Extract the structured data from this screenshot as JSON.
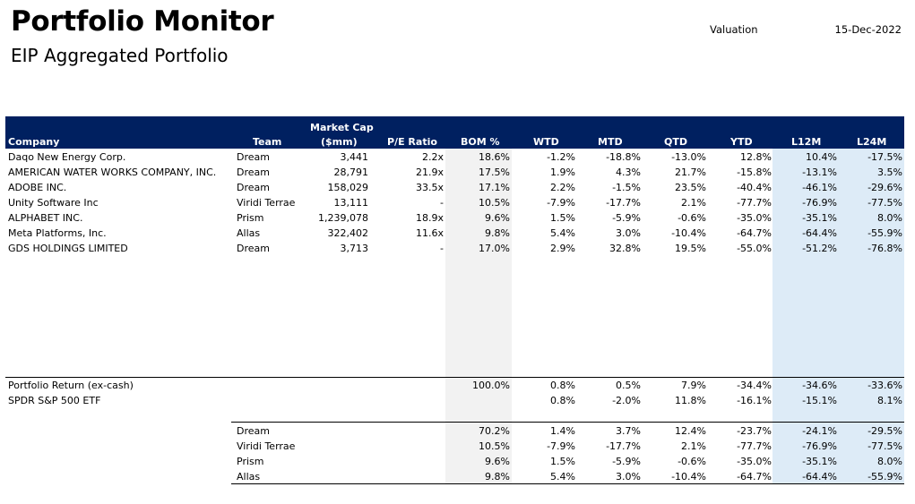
{
  "header": {
    "title": "Portfolio Monitor",
    "subtitle": "EIP Aggregated Portfolio",
    "valuation_label": "Valuation",
    "valuation_date": "15-Dec-2022"
  },
  "columns": {
    "company": "Company",
    "team": "Team",
    "market_cap_1": "Market Cap",
    "market_cap_2": "($mm)",
    "pe": "P/E Ratio",
    "bom": "BOM %",
    "wtd": "WTD",
    "mtd": "MTD",
    "qtd": "QTD",
    "ytd": "YTD",
    "l12m": "L12M",
    "l24m": "L24M"
  },
  "holdings": [
    {
      "company": "Daqo New Energy Corp.",
      "team": "Dream",
      "mcap": "3,441",
      "pe": "2.2x",
      "bom": "18.6%",
      "wtd": "-1.2%",
      "mtd": "-18.8%",
      "qtd": "-13.0%",
      "ytd": "12.8%",
      "l12m": "10.4%",
      "l24m": "-17.5%"
    },
    {
      "company": "AMERICAN WATER WORKS COMPANY, INC.",
      "team": "Dream",
      "mcap": "28,791",
      "pe": "21.9x",
      "bom": "17.5%",
      "wtd": "1.9%",
      "mtd": "4.3%",
      "qtd": "21.7%",
      "ytd": "-15.8%",
      "l12m": "-13.1%",
      "l24m": "3.5%"
    },
    {
      "company": "ADOBE INC.",
      "team": "Dream",
      "mcap": "158,029",
      "pe": "33.5x",
      "bom": "17.1%",
      "wtd": "2.2%",
      "mtd": "-1.5%",
      "qtd": "23.5%",
      "ytd": "-40.4%",
      "l12m": "-46.1%",
      "l24m": "-29.6%"
    },
    {
      "company": "Unity Software Inc",
      "team": "Viridi Terrae",
      "mcap": "13,111",
      "pe": "-",
      "bom": "10.5%",
      "wtd": "-7.9%",
      "mtd": "-17.7%",
      "qtd": "2.1%",
      "ytd": "-77.7%",
      "l12m": "-76.9%",
      "l24m": "-77.5%"
    },
    {
      "company": "ALPHABET INC.",
      "team": "Prism",
      "mcap": "1,239,078",
      "pe": "18.9x",
      "bom": "9.6%",
      "wtd": "1.5%",
      "mtd": "-5.9%",
      "qtd": "-0.6%",
      "ytd": "-35.0%",
      "l12m": "-35.1%",
      "l24m": "8.0%"
    },
    {
      "company": "Meta Platforms, Inc.",
      "team": "Allas",
      "mcap": "322,402",
      "pe": "11.6x",
      "bom": "9.8%",
      "wtd": "5.4%",
      "mtd": "3.0%",
      "qtd": "-10.4%",
      "ytd": "-64.7%",
      "l12m": "-64.4%",
      "l24m": "-55.9%"
    },
    {
      "company": "GDS HOLDINGS LIMITED",
      "team": "Dream",
      "mcap": "3,713",
      "pe": "-",
      "bom": "17.0%",
      "wtd": "2.9%",
      "mtd": "32.8%",
      "qtd": "19.5%",
      "ytd": "-55.0%",
      "l12m": "-51.2%",
      "l24m": "-76.8%"
    }
  ],
  "summary": [
    {
      "label": "Portfolio Return (ex-cash)",
      "bom": "100.0%",
      "wtd": "0.8%",
      "mtd": "0.5%",
      "qtd": "7.9%",
      "ytd": "-34.4%",
      "l12m": "-34.6%",
      "l24m": "-33.6%"
    },
    {
      "label": "SPDR S&P 500 ETF",
      "bom": "",
      "wtd": "0.8%",
      "mtd": "-2.0%",
      "qtd": "11.8%",
      "ytd": "-16.1%",
      "l12m": "-15.1%",
      "l24m": "8.1%"
    }
  ],
  "teams": [
    {
      "team": "Dream",
      "bom": "70.2%",
      "wtd": "1.4%",
      "mtd": "3.7%",
      "qtd": "12.4%",
      "ytd": "-23.7%",
      "l12m": "-24.1%",
      "l24m": "-29.5%"
    },
    {
      "team": "Viridi Terrae",
      "bom": "10.5%",
      "wtd": "-7.9%",
      "mtd": "-17.7%",
      "qtd": "2.1%",
      "ytd": "-77.7%",
      "l12m": "-76.9%",
      "l24m": "-77.5%"
    },
    {
      "team": "Prism",
      "bom": "9.6%",
      "wtd": "1.5%",
      "mtd": "-5.9%",
      "qtd": "-0.6%",
      "ytd": "-35.0%",
      "l12m": "-35.1%",
      "l24m": "8.0%"
    },
    {
      "team": "Allas",
      "bom": "9.8%",
      "wtd": "5.4%",
      "mtd": "3.0%",
      "qtd": "-10.4%",
      "ytd": "-64.7%",
      "l12m": "-64.4%",
      "l24m": "-55.9%"
    }
  ],
  "colors": {
    "header_bg": "#002060",
    "bom_shade": "#f2f2f2",
    "trailing_shade": "#ddebf7"
  }
}
